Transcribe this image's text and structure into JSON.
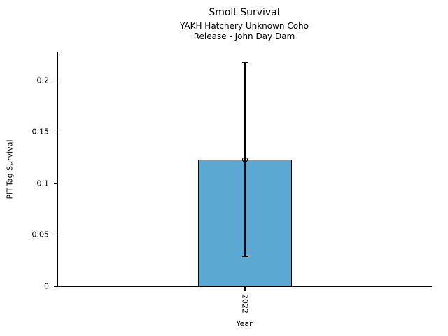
{
  "chart_data": {
    "type": "bar",
    "title": "Smolt Survival",
    "subtitle": [
      "YAKH Hatchery Unknown Coho",
      "Release - John Day Dam"
    ],
    "xlabel": "Year",
    "ylabel": "PIT-Tag Survival",
    "categories": [
      "2022"
    ],
    "values": [
      0.123
    ],
    "error_bars": [
      {
        "lower": 0.029,
        "upper": 0.217
      }
    ],
    "ylim": [
      0,
      0.227
    ],
    "yticks": [
      0,
      0.05,
      0.1,
      0.15,
      0.2
    ],
    "ytick_labels": [
      "0",
      "0.05",
      "0.1",
      "0.15",
      "0.2"
    ],
    "bar_color": "#5BA8D3",
    "bar_edge_color": "#000000",
    "axis_color": "#000000",
    "grid": false,
    "legend": null
  }
}
